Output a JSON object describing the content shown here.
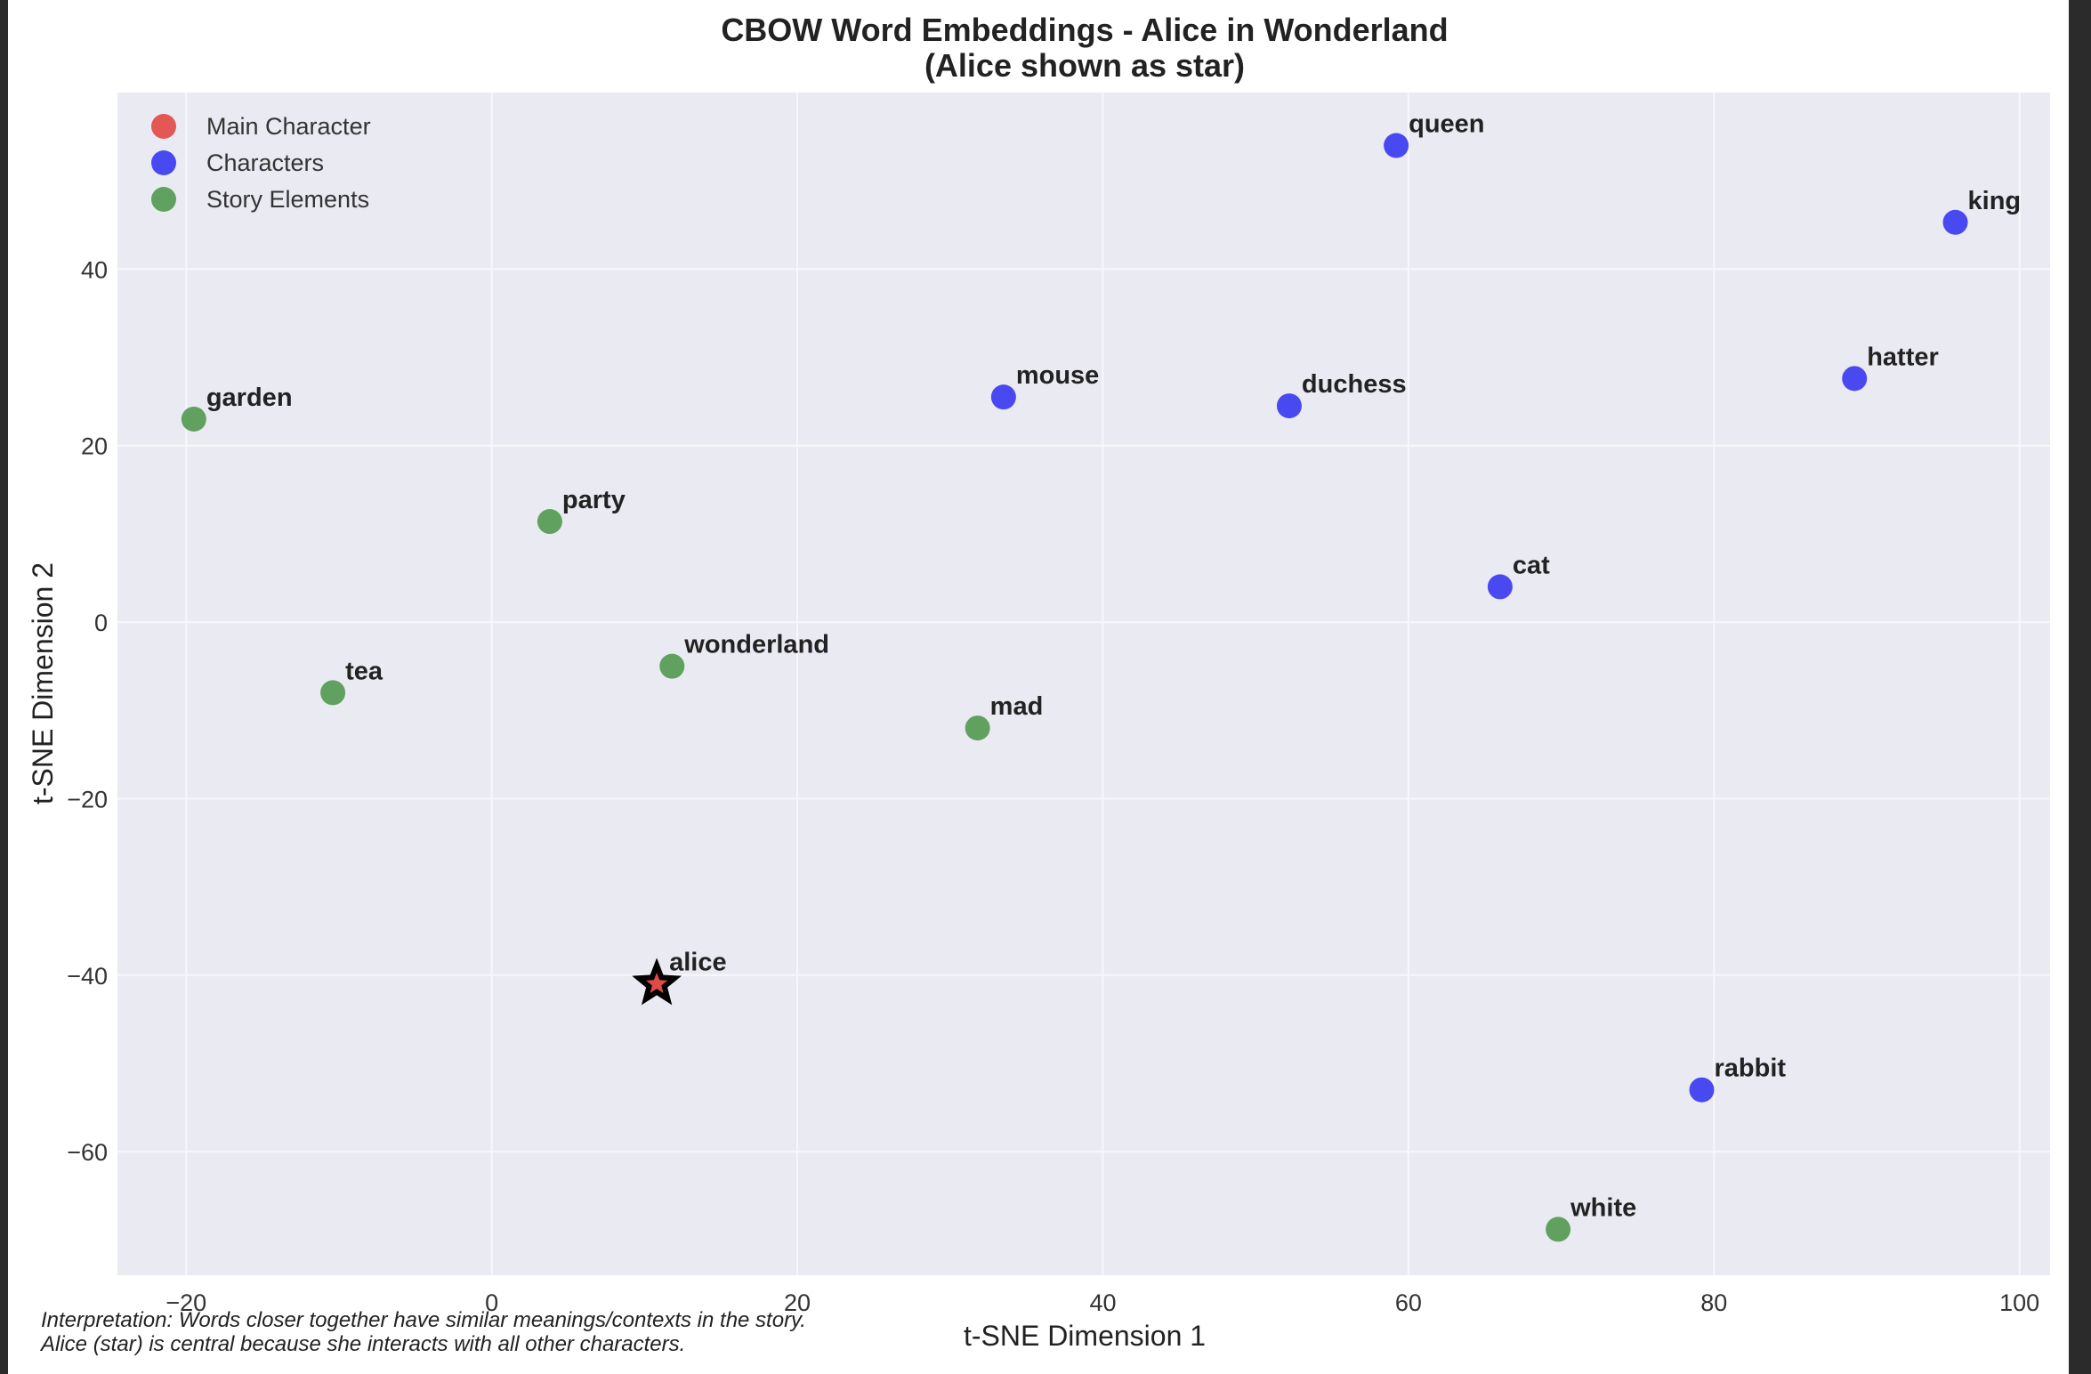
{
  "chart_data": {
    "type": "scatter",
    "title": "CBOW Word Embeddings - Alice in Wonderland",
    "subtitle": "(Alice shown as star)",
    "xlabel": "t-SNE Dimension 1",
    "ylabel": "t-SNE Dimension 2",
    "xlim": [
      -24.5,
      102
    ],
    "ylim": [
      -74,
      60
    ],
    "xticks": [
      -20,
      0,
      20,
      40,
      60,
      80,
      100
    ],
    "yticks": [
      -60,
      -40,
      -20,
      0,
      20,
      40
    ],
    "grid": true,
    "legend_position": "top-left",
    "categories": [
      {
        "key": "main",
        "name": "Main Character",
        "color": "#e24a46"
      },
      {
        "key": "characters",
        "name": "Characters",
        "color": "#3b3bf2"
      },
      {
        "key": "story",
        "name": "Story Elements",
        "color": "#559a52"
      }
    ],
    "points": [
      {
        "label": "alice",
        "x": 10.8,
        "y": -41,
        "category": "main",
        "marker": "star"
      },
      {
        "label": "queen",
        "x": 59.2,
        "y": 54,
        "category": "characters"
      },
      {
        "label": "king",
        "x": 95.8,
        "y": 45.3,
        "category": "characters"
      },
      {
        "label": "mouse",
        "x": 33.5,
        "y": 25.5,
        "category": "characters"
      },
      {
        "label": "duchess",
        "x": 52.2,
        "y": 24.5,
        "category": "characters"
      },
      {
        "label": "hatter",
        "x": 89.2,
        "y": 27.6,
        "category": "characters"
      },
      {
        "label": "cat",
        "x": 66,
        "y": 4,
        "category": "characters"
      },
      {
        "label": "rabbit",
        "x": 79.2,
        "y": -53,
        "category": "characters"
      },
      {
        "label": "garden",
        "x": -19.5,
        "y": 23,
        "category": "story"
      },
      {
        "label": "party",
        "x": 3.8,
        "y": 11.4,
        "category": "story"
      },
      {
        "label": "tea",
        "x": -10.4,
        "y": -8,
        "category": "story"
      },
      {
        "label": "wonderland",
        "x": 11.8,
        "y": -5,
        "category": "story"
      },
      {
        "label": "mad",
        "x": 31.8,
        "y": -12,
        "category": "story"
      },
      {
        "label": "white",
        "x": 69.8,
        "y": -68.8,
        "category": "story"
      }
    ]
  },
  "interpretation": [
    "Interpretation: Words closer together have similar meanings/contexts in the story.",
    "Alice (star) is central because she interacts with all other characters."
  ],
  "colors": {
    "plot_background": "#eaeaf2",
    "grid": "#f7f7fb",
    "star_outline": "#000000"
  }
}
